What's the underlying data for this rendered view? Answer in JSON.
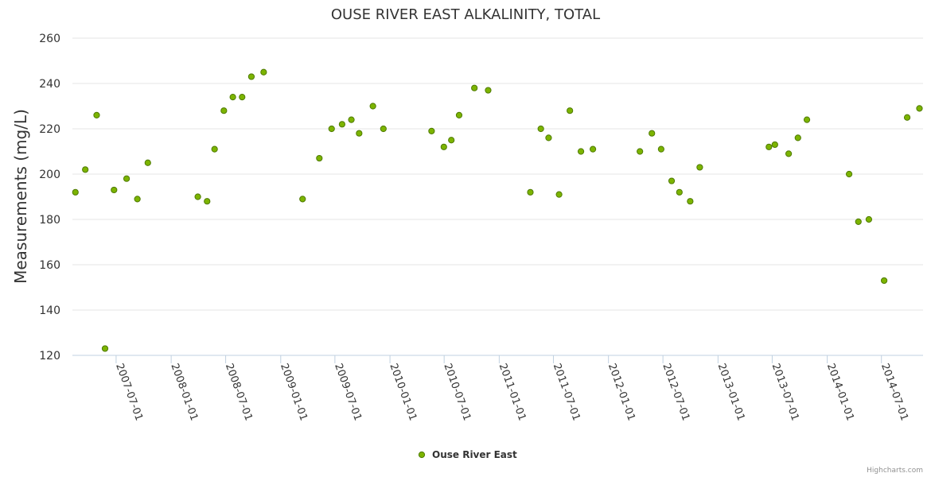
{
  "chart_data": {
    "type": "scatter",
    "title": "OUSE RIVER EAST ALKALINITY, TOTAL",
    "xlabel": "",
    "ylabel": "Measurements (mg/L)",
    "ylim": [
      120,
      260
    ],
    "yticks": [
      120,
      140,
      160,
      180,
      200,
      220,
      240,
      260
    ],
    "xlim": [
      "2007-02-05",
      "2014-11-17"
    ],
    "xticks": [
      "2007-07-01",
      "2008-01-01",
      "2008-07-01",
      "2009-01-01",
      "2009-07-01",
      "2010-01-01",
      "2010-07-01",
      "2011-01-01",
      "2011-07-01",
      "2012-01-01",
      "2012-07-01",
      "2013-01-01",
      "2013-07-01",
      "2014-01-01",
      "2014-07-01"
    ],
    "grid": true,
    "legend": "bottom-center",
    "color": "#7cb400",
    "marker_stroke": "#4e7a00",
    "series": [
      {
        "name": "Ouse River East",
        "x": [
          "2007-02-15",
          "2007-03-20",
          "2007-04-27",
          "2007-05-25",
          "2007-06-24",
          "2007-08-05",
          "2007-09-10",
          "2007-10-15",
          "2008-03-30",
          "2008-04-30",
          "2008-05-25",
          "2008-06-25",
          "2008-07-25",
          "2008-08-25",
          "2008-09-25",
          "2008-11-05",
          "2009-03-15",
          "2009-05-10",
          "2009-06-20",
          "2009-07-25",
          "2009-08-25",
          "2009-09-20",
          "2009-11-05",
          "2009-12-10",
          "2010-05-20",
          "2010-06-30",
          "2010-07-25",
          "2010-08-20",
          "2010-10-10",
          "2010-11-25",
          "2011-04-15",
          "2011-05-20",
          "2011-06-15",
          "2011-07-20",
          "2011-08-25",
          "2011-10-01",
          "2011-11-10",
          "2012-04-15",
          "2012-05-25",
          "2012-06-25",
          "2012-07-30",
          "2012-08-25",
          "2012-09-30",
          "2012-11-01",
          "2013-06-20",
          "2013-07-10",
          "2013-08-25",
          "2013-09-25",
          "2013-10-25",
          "2014-03-15",
          "2014-04-15",
          "2014-05-20",
          "2014-07-10",
          "2014-09-25",
          "2014-11-05"
        ],
        "values": [
          192,
          202,
          226,
          123,
          193,
          198,
          189,
          205,
          190,
          188,
          211,
          228,
          234,
          234,
          243,
          245,
          189,
          207,
          220,
          222,
          224,
          218,
          230,
          220,
          219,
          212,
          215,
          226,
          238,
          237,
          192,
          220,
          216,
          191,
          228,
          210,
          211,
          210,
          218,
          211,
          197,
          192,
          188,
          203,
          212,
          213,
          209,
          216,
          224,
          200,
          179,
          180,
          153,
          225,
          229
        ]
      }
    ]
  },
  "legend": {
    "label": "Ouse River East"
  },
  "credits": "Highcharts.com"
}
